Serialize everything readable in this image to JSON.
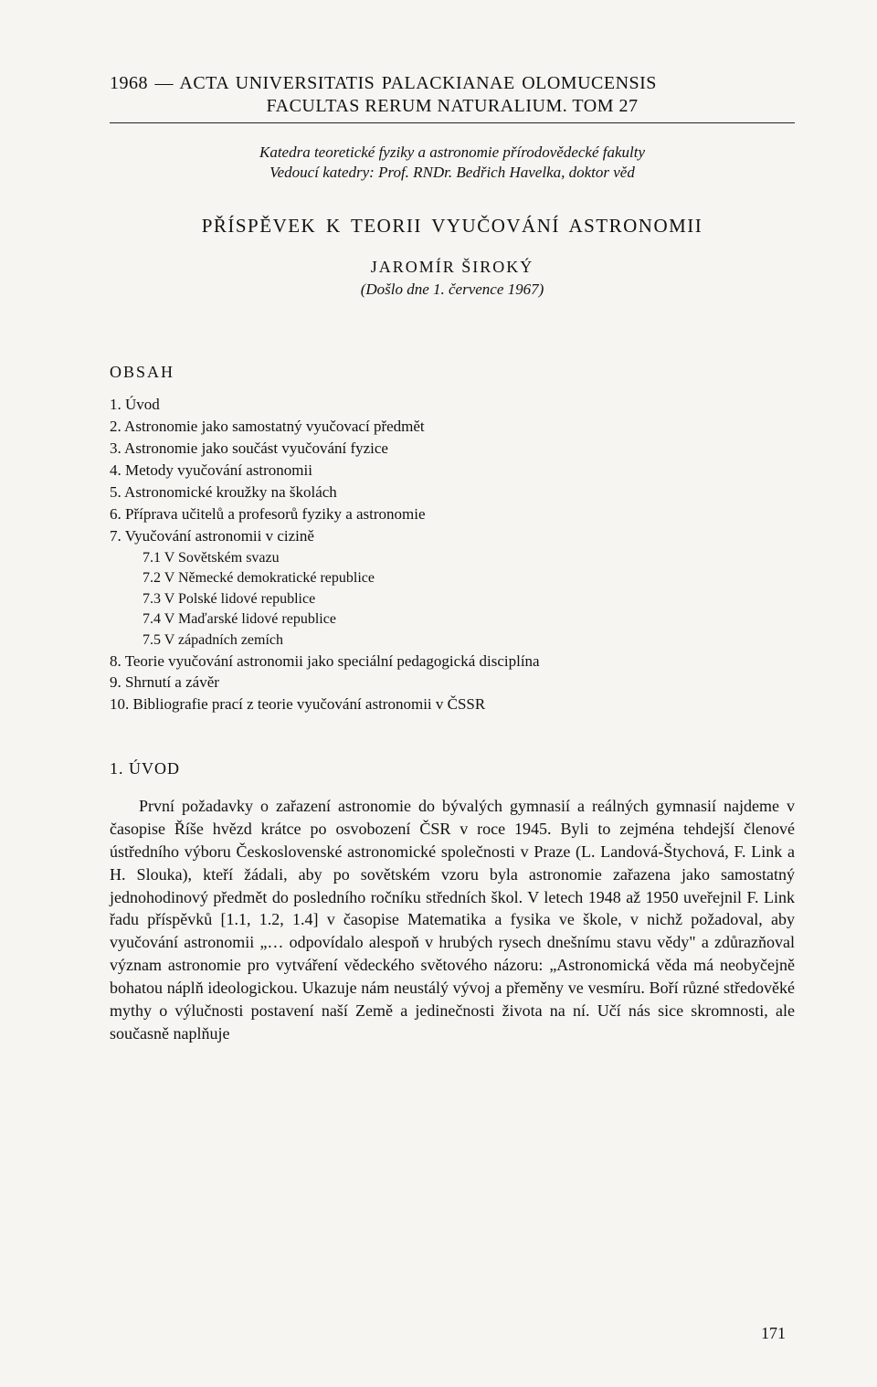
{
  "masthead": {
    "line1": "1968 — ACTA UNIVERSITATIS PALACKIANAE OLOMUCENSIS",
    "line2": "FACULTAS RERUM NATURALIUM. TOM 27"
  },
  "department": {
    "line1": "Katedra teoretické fyziky a astronomie přírodovědecké fakulty",
    "line2": "Vedoucí katedry: Prof. RNDr. Bedřich Havelka, doktor věd"
  },
  "article_title": "PŘÍSPĚVEK K TEORII VYUČOVÁNÍ ASTRONOMII",
  "author": "JAROMÍR ŠIROKÝ",
  "received": "(Došlo dne 1. července 1967)",
  "obsah_heading": "OBSAH",
  "toc": {
    "i1": "1. Úvod",
    "i2": "2. Astronomie jako samostatný vyučovací předmět",
    "i3": "3. Astronomie jako součást vyučování fyzice",
    "i4": "4. Metody vyučování astronomii",
    "i5": "5. Astronomické kroužky na školách",
    "i6": "6. Příprava učitelů a profesorů fyziky a astronomie",
    "i7": "7. Vyučování astronomii v cizině",
    "i7_1": "7.1 V Sovětském svazu",
    "i7_2": "7.2 V Německé demokratické republice",
    "i7_3": "7.3 V Polské lidové republice",
    "i7_4": "7.4 V Maďarské lidové republice",
    "i7_5": "7.5 V západních zemích",
    "i8": "8. Teorie vyučování astronomii jako speciální pedagogická disciplína",
    "i9": "9. Shrnutí a závěr",
    "i10": "10. Bibliografie prací z teorie vyučování astronomii v ČSSR"
  },
  "section1_heading": "1. ÚVOD",
  "section1_para": "První požadavky o zařazení astronomie do bývalých gymnasií a reálných gymnasií najdeme v časopise Říše hvězd krátce po osvobození ČSR v roce 1945. Byli to zejména tehdejší členové ústředního výboru Československé astronomické společnosti v Praze (L. Landová-Štychová, F. Link a H. Slouka), kteří žádali, aby po sovětském vzoru byla astronomie zařazena jako samostatný jednohodinový předmět do posledního ročníku středních škol. V letech 1948 až 1950 uveřejnil F. Link řadu příspěvků [1.1, 1.2, 1.4] v časopise Matematika a fysika ve škole, v nichž požadoval, aby vyučování astronomii „… odpovídalo alespoň v hrubých rysech dnešnímu stavu vědy\" a zdůrazňoval význam astronomie pro vytváření vědeckého světového názoru: „Astronomická věda má neobyčejně bohatou náplň ideologickou. Ukazuje nám neustálý vývoj a přeměny ve vesmíru. Boří různé středověké mythy o výlučnosti postavení naší Země a jedinečnosti života na ní. Učí nás sice skromnosti, ale současně naplňuje",
  "page_number": "171"
}
